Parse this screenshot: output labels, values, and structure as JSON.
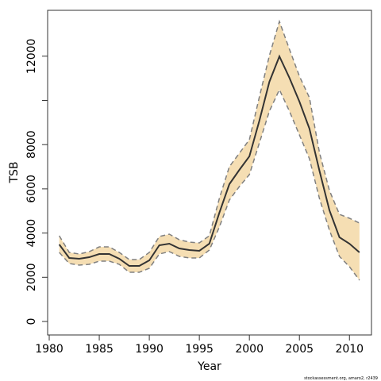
{
  "chart_data": {
    "type": "line-band",
    "x_label": "Year",
    "y_label": "TSB",
    "footer": "stockassessment.org, amaro2, r2439",
    "x": [
      1981,
      1982,
      1983,
      1984,
      1985,
      1986,
      1987,
      1988,
      1989,
      1990,
      1991,
      1992,
      1993,
      1994,
      1995,
      1996,
      1997,
      1998,
      1999,
      2000,
      2001,
      2002,
      2003,
      2004,
      2005,
      2006,
      2007,
      2008,
      2009,
      2010,
      2011
    ],
    "values": [
      3483,
      2873,
      2837,
      2908,
      3052,
      3052,
      2837,
      2513,
      2513,
      2765,
      3447,
      3519,
      3303,
      3232,
      3196,
      3519,
      4919,
      6212,
      6858,
      7469,
      9084,
      10844,
      11993,
      11023,
      9946,
      8725,
      6822,
      5027,
      3806,
      3519,
      3124
    ],
    "upper": [
      3878,
      3124,
      3052,
      3160,
      3375,
      3375,
      3124,
      2800,
      2800,
      3124,
      3842,
      3950,
      3698,
      3591,
      3555,
      3878,
      5566,
      7002,
      7612,
      8223,
      10162,
      12029,
      13573,
      12316,
      11095,
      10126,
      7648,
      5925,
      4847,
      4668,
      4452
    ],
    "lower": [
      3124,
      2621,
      2549,
      2585,
      2729,
      2729,
      2585,
      2226,
      2226,
      2406,
      3052,
      3160,
      2944,
      2873,
      2873,
      3232,
      4273,
      5494,
      6104,
      6643,
      8079,
      9515,
      10485,
      9515,
      8438,
      7361,
      5566,
      4129,
      2944,
      2477,
      1867
    ],
    "color": "#333333",
    "band_color": "#f5deb3",
    "band_edge_color": "#808080",
    "xlim": [
      1979.84,
      2012.2
    ],
    "xticks": [
      1980,
      1985,
      1990,
      1995,
      2000,
      2005,
      2010
    ],
    "ylim": [
      -610,
      14075
    ],
    "yticks": [
      0,
      2000,
      4000,
      6000,
      8000,
      {
        "value": 10000,
        "label": null
      },
      12000
    ]
  }
}
